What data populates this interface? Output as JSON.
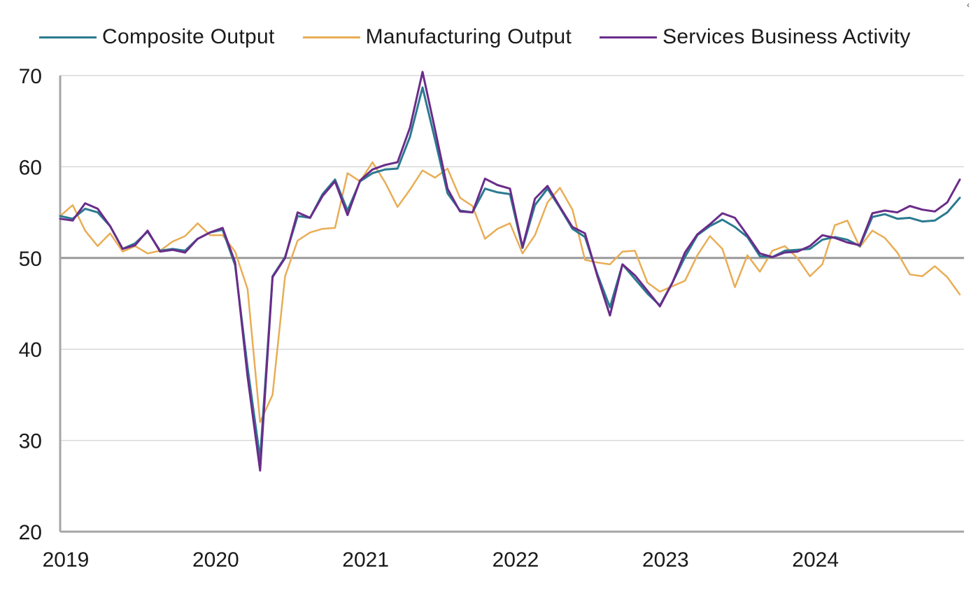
{
  "chart_data": {
    "type": "line",
    "title": "",
    "xlabel": "",
    "ylabel": "",
    "ylim": [
      20,
      70
    ],
    "yticks": [
      "70",
      "60",
      "50",
      "40",
      "30",
      "20"
    ],
    "xticks": [
      "2019",
      "2020",
      "2021",
      "2022",
      "2023",
      "2024"
    ],
    "x_start": "2019-01",
    "x_end": "2024-12",
    "reference_line": 50,
    "grid": true,
    "legend_position": "top",
    "series": [
      {
        "name": "Composite Output",
        "color": "#2a7a90",
        "values": [
          54.6,
          54.3,
          55.4,
          55.0,
          53.5,
          51.0,
          51.6,
          52.9,
          50.8,
          51.0,
          50.8,
          52.1,
          52.8,
          53.1,
          49.2,
          38.0,
          28.0,
          48.0,
          50.1,
          54.6,
          54.4,
          57.0,
          58.6,
          55.2,
          58.4,
          59.3,
          59.7,
          59.8,
          63.3,
          68.7,
          63.0,
          57.1,
          55.2,
          55.0,
          57.6,
          57.2,
          57.0,
          51.1,
          55.8,
          57.6,
          55.5,
          53.2,
          52.3,
          48.2,
          44.6,
          49.3,
          47.7,
          46.1,
          44.8,
          47.3,
          50.1,
          52.5,
          53.5,
          54.2,
          53.4,
          52.3,
          50.2,
          50.1,
          50.8,
          50.9,
          51.0,
          52.0,
          52.3,
          52.0,
          51.3,
          54.5,
          54.8,
          54.3,
          54.4,
          54.0,
          54.1,
          55.0,
          56.6
        ]
      },
      {
        "name": "Manufacturing Output",
        "color": "#e8ad55",
        "values": [
          54.6,
          55.8,
          53.0,
          51.3,
          52.7,
          50.7,
          51.3,
          50.5,
          50.8,
          51.8,
          52.4,
          53.8,
          52.5,
          52.5,
          50.7,
          46.6,
          32.0,
          35.0,
          48.0,
          51.9,
          52.8,
          53.2,
          53.3,
          59.3,
          58.4,
          60.5,
          58.3,
          55.6,
          57.5,
          59.6,
          58.8,
          59.8,
          56.6,
          55.7,
          52.1,
          53.2,
          53.8,
          50.5,
          52.5,
          56.1,
          57.7,
          55.3,
          49.8,
          49.5,
          49.3,
          50.7,
          50.8,
          47.3,
          46.3,
          46.9,
          47.5,
          50.3,
          52.4,
          51.0,
          46.8,
          50.3,
          48.5,
          50.8,
          51.3,
          50.0,
          48.0,
          49.3,
          53.6,
          54.1,
          51.2,
          53.0,
          52.2,
          50.6,
          48.2,
          48.0,
          49.1,
          47.9,
          46.0
        ]
      },
      {
        "name": "Services Business Activity",
        "color": "#6a2c8a",
        "values": [
          54.3,
          54.1,
          56.0,
          55.4,
          53.5,
          51.0,
          51.4,
          53.0,
          50.7,
          50.9,
          50.6,
          52.1,
          52.8,
          53.3,
          49.5,
          37.0,
          26.7,
          47.9,
          50.0,
          55.0,
          54.4,
          56.8,
          58.4,
          54.7,
          58.5,
          59.7,
          60.2,
          60.5,
          64.3,
          70.4,
          64.1,
          57.6,
          55.1,
          55.0,
          58.7,
          58.0,
          57.6,
          51.2,
          56.5,
          57.9,
          55.6,
          53.4,
          52.7,
          48.0,
          43.7,
          49.3,
          48.1,
          46.4,
          44.7,
          47.3,
          50.6,
          52.6,
          53.7,
          54.9,
          54.4,
          52.5,
          50.5,
          50.1,
          50.6,
          50.7,
          51.3,
          52.5,
          52.2,
          51.7,
          51.4,
          54.9,
          55.2,
          55.0,
          55.7,
          55.3,
          55.1,
          56.1,
          58.6
        ]
      }
    ]
  },
  "corner_mark": "‹"
}
